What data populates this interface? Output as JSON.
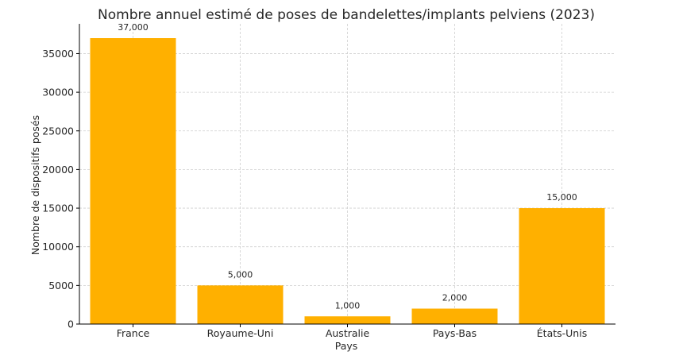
{
  "chart_data": {
    "type": "bar",
    "title": "Nombre annuel estimé de poses de bandelettes/implants pelviens (2023)",
    "xlabel": "Pays",
    "ylabel": "Nombre de dispositifs posés",
    "categories": [
      "France",
      "Royaume-Uni",
      "Australie",
      "Pays-Bas",
      "États-Unis"
    ],
    "values": [
      37000,
      5000,
      1000,
      2000,
      15000
    ],
    "data_labels": [
      "37,000",
      "5,000",
      "1,000",
      "2,000",
      "15,000"
    ],
    "yticks": [
      0,
      5000,
      10000,
      15000,
      20000,
      25000,
      30000,
      35000
    ],
    "ytick_labels": [
      "0",
      "5000",
      "10000",
      "15000",
      "20000",
      "25000",
      "30000",
      "35000"
    ],
    "ylim": [
      0,
      38850
    ],
    "grid": true,
    "bar_color": "#FFB000"
  }
}
